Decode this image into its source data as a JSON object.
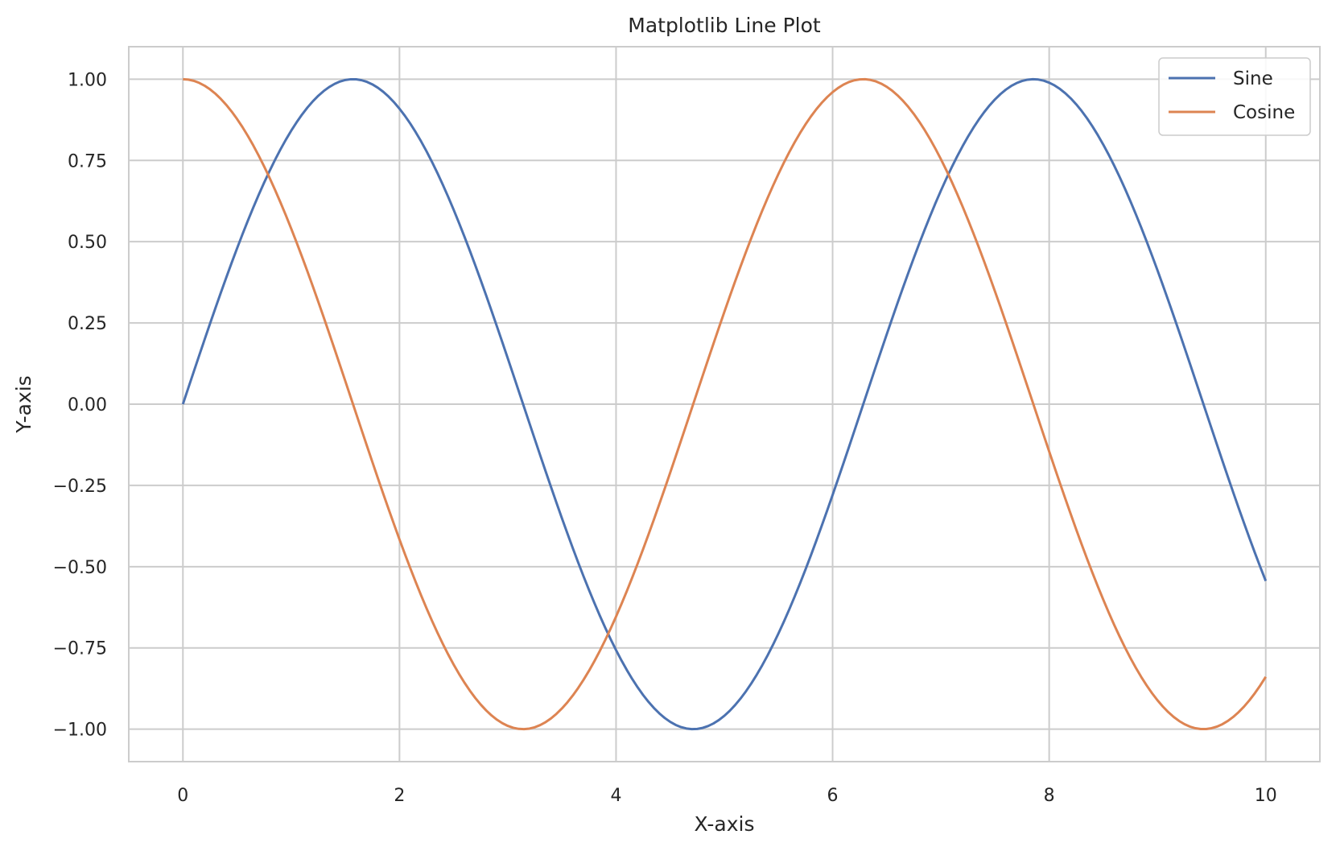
{
  "chart_data": {
    "type": "line",
    "title": "Matplotlib Line Plot",
    "xlabel": "X-axis",
    "ylabel": "Y-axis",
    "xlim": [
      -0.5,
      10.5
    ],
    "ylim": [
      -1.1,
      1.1
    ],
    "xticks": [
      0,
      2,
      4,
      6,
      8,
      10
    ],
    "xtick_labels": [
      "0",
      "2",
      "4",
      "6",
      "8",
      "10"
    ],
    "yticks": [
      1.0,
      0.75,
      0.5,
      0.25,
      0.0,
      -0.25,
      -0.5,
      -0.75,
      -1.0
    ],
    "ytick_labels": [
      "1.00",
      "0.75",
      "0.50",
      "0.25",
      "0.00",
      "−0.25",
      "−0.50",
      "−0.75",
      "−1.00"
    ],
    "grid": true,
    "legend_position": "top-right",
    "series": [
      {
        "name": "Sine",
        "color": "#4c72b0",
        "x": [
          0,
          0.5,
          1,
          1.5,
          2,
          2.5,
          3,
          3.5,
          4,
          4.5,
          5,
          5.5,
          6,
          6.5,
          7,
          7.5,
          8,
          8.5,
          9,
          9.5,
          10
        ],
        "y": [
          0,
          0.479,
          0.841,
          0.997,
          0.909,
          0.598,
          0.141,
          -0.351,
          -0.757,
          -0.978,
          -0.959,
          -0.706,
          -0.279,
          0.215,
          0.657,
          0.938,
          0.989,
          0.798,
          0.412,
          -0.075,
          -0.544
        ]
      },
      {
        "name": "Cosine",
        "color": "#dd8452",
        "x": [
          0,
          0.5,
          1,
          1.5,
          2,
          2.5,
          3,
          3.5,
          4,
          4.5,
          5,
          5.5,
          6,
          6.5,
          7,
          7.5,
          8,
          8.5,
          9,
          9.5,
          10
        ],
        "y": [
          1,
          0.878,
          0.54,
          0.071,
          -0.416,
          -0.801,
          -0.99,
          -0.936,
          -0.654,
          -0.211,
          0.284,
          0.709,
          0.96,
          0.977,
          0.754,
          0.347,
          -0.146,
          -0.602,
          -0.911,
          -0.997,
          -0.839
        ]
      }
    ]
  }
}
